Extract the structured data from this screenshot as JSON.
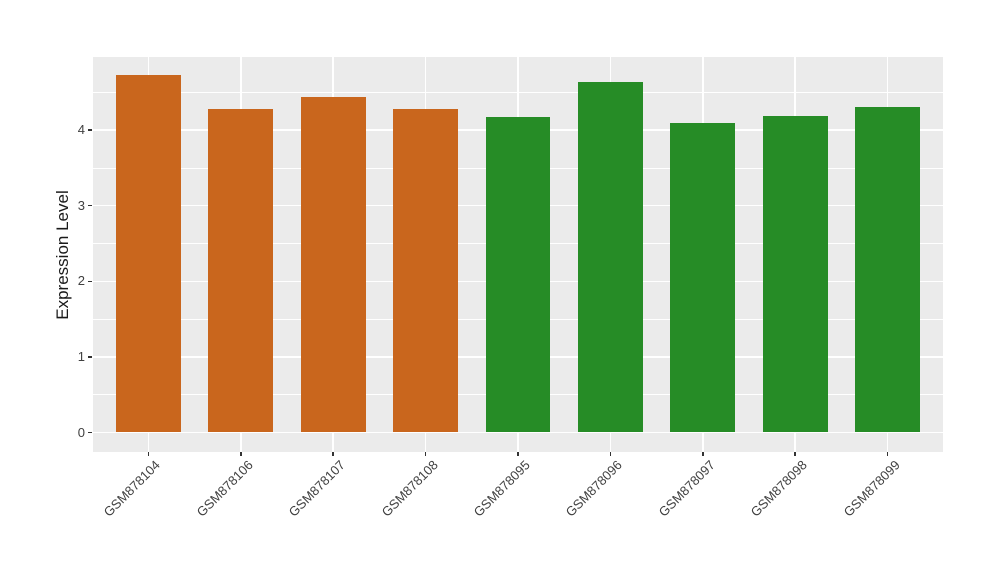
{
  "chart_data": {
    "type": "bar",
    "title": "",
    "xlabel": "",
    "ylabel": "Expression Level",
    "categories": [
      "GSM878104",
      "GSM878106",
      "GSM878107",
      "GSM878108",
      "GSM878095",
      "GSM878096",
      "GSM878097",
      "GSM878098",
      "GSM878099"
    ],
    "values": [
      4.73,
      4.28,
      4.44,
      4.28,
      4.17,
      4.63,
      4.1,
      4.19,
      4.31
    ],
    "bar_colors": [
      "#C9661D",
      "#C9661D",
      "#C9661D",
      "#C9661D",
      "#268C26",
      "#268C26",
      "#268C26",
      "#268C26",
      "#268C26"
    ],
    "yticks": [
      "0",
      "1",
      "2",
      "3",
      "4"
    ],
    "ylim": [
      -0.25,
      4.97
    ],
    "bar_width_fraction": 0.7,
    "x_label_rotation_deg": 45,
    "legend_position": "none",
    "grid": "white major gridlines on gray panel",
    "colors": {
      "panel_background": "#EBEBEB",
      "gridline": "#FFFFFF",
      "orange_bars": "#C9661D",
      "green_bars": "#268C26",
      "axis_text": "#404040"
    }
  }
}
